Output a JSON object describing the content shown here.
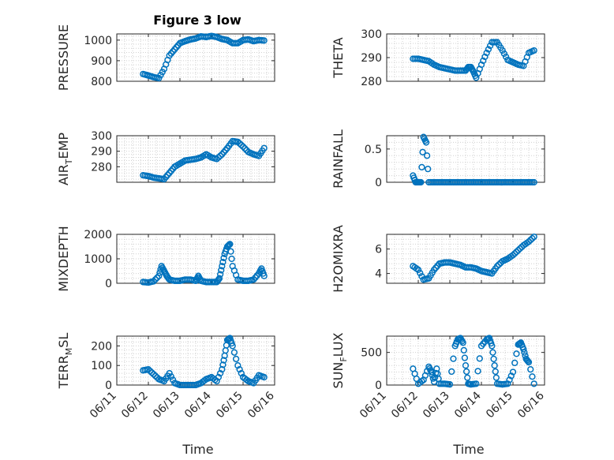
{
  "figure": {
    "title": "Figure 3 low",
    "xlabel": "Time"
  },
  "colors": {
    "marker": "#0072BD",
    "axis": "#262626",
    "grid": "#d0d0d0"
  },
  "x_ticks": [
    "06/11",
    "06/12",
    "06/13",
    "06/14",
    "06/15",
    "06/16"
  ],
  "chart_data": [
    {
      "type": "scatter",
      "ylabel_parts": [
        "PRESSURE"
      ],
      "ylim": [
        800,
        1030
      ],
      "yticks": [
        800,
        900,
        1000
      ],
      "grid": true,
      "x": [
        "06/11 20:00",
        "06/12 00:00",
        "06/12 04:00",
        "06/12 08:00",
        "06/12 12:00",
        "06/12 16:00",
        "06/12 20:00",
        "06/13 00:00",
        "06/13 04:00",
        "06/13 08:00",
        "06/13 12:00",
        "06/13 16:00",
        "06/13 20:00",
        "06/14 00:00",
        "06/14 04:00",
        "06/14 08:00",
        "06/14 12:00",
        "06/14 16:00",
        "06/14 20:00",
        "06/15 00:00",
        "06/15 04:00",
        "06/15 08:00",
        "06/15 12:00",
        "06/15 16:00"
      ],
      "y": [
        835,
        828,
        820,
        815,
        860,
        925,
        955,
        985,
        995,
        1003,
        1008,
        1018,
        1015,
        1020,
        1015,
        1005,
        1000,
        985,
        985,
        1000,
        1003,
        995,
        1000,
        998
      ]
    },
    {
      "type": "scatter",
      "ylabel_parts": [
        "THETA"
      ],
      "ylim": [
        280,
        300
      ],
      "yticks": [
        280,
        290,
        300
      ],
      "grid": true,
      "x": [
        "06/11 20:00",
        "06/12 00:00",
        "06/12 04:00",
        "06/12 08:00",
        "06/12 12:00",
        "06/12 16:00",
        "06/12 20:00",
        "06/13 00:00",
        "06/13 04:00",
        "06/13 08:00",
        "06/13 12:00",
        "06/13 14:00",
        "06/13 16:00",
        "06/13 18:00",
        "06/13 20:00",
        "06/14 00:00",
        "06/14 04:00",
        "06/14 08:00",
        "06/14 12:00",
        "06/14 16:00",
        "06/14 20:00",
        "06/15 00:00",
        "06/15 04:00",
        "06/15 08:00",
        "06/15 12:00",
        "06/15 16:00"
      ],
      "y": [
        289.5,
        289.5,
        289,
        288.5,
        287,
        286,
        285.5,
        285,
        284.5,
        284.5,
        284.5,
        286,
        286,
        284,
        281.5,
        287,
        292,
        296.5,
        296.5,
        293,
        289,
        288,
        287,
        286.5,
        292,
        293
      ]
    },
    {
      "type": "scatter",
      "ylabel_parts": [
        "AIR",
        "T",
        "EMP"
      ],
      "ylim": [
        270,
        300
      ],
      "yticks": [
        280,
        290,
        300
      ],
      "grid": true,
      "x": [
        "06/11 20:00",
        "06/12 00:00",
        "06/12 04:00",
        "06/12 08:00",
        "06/12 12:00",
        "06/12 16:00",
        "06/12 20:00",
        "06/13 00:00",
        "06/13 04:00",
        "06/13 08:00",
        "06/13 12:00",
        "06/13 16:00",
        "06/13 20:00",
        "06/14 00:00",
        "06/14 04:00",
        "06/14 08:00",
        "06/14 12:00",
        "06/14 16:00",
        "06/14 20:00",
        "06/15 00:00",
        "06/15 04:00",
        "06/15 08:00",
        "06/15 12:00",
        "06/15 16:00"
      ],
      "y": [
        274.5,
        274,
        273,
        272.5,
        272,
        276,
        280,
        282,
        284,
        284.5,
        285,
        286,
        288,
        286,
        285,
        288,
        292,
        296.5,
        296,
        293,
        289.5,
        288,
        287,
        292
      ]
    },
    {
      "type": "scatter",
      "ylabel_parts": [
        "RAINFALL"
      ],
      "ylim": [
        0,
        0.7
      ],
      "yticks": [
        0,
        0.5
      ],
      "grid": true,
      "x": [
        "06/11 20:00",
        "06/11 22:00",
        "06/12 00:00",
        "06/12 02:00",
        "06/12 04:00",
        "06/12 06:00",
        "06/12 08:00",
        "06/12 12:00",
        "06/12 16:00",
        "06/12 20:00",
        "06/13 00:00",
        "06/13 04:00",
        "06/13 08:00",
        "06/13 12:00",
        "06/13 16:00",
        "06/13 20:00",
        "06/14 00:00",
        "06/14 04:00",
        "06/14 08:00",
        "06/14 12:00",
        "06/14 16:00",
        "06/14 20:00",
        "06/15 00:00",
        "06/15 04:00",
        "06/15 08:00",
        "06/15 12:00",
        "06/15 16:00"
      ],
      "y": [
        0.1,
        0,
        0,
        0,
        0.68,
        0.6,
        0,
        0,
        0,
        0,
        0,
        0,
        0,
        0,
        0,
        0,
        0,
        0,
        0,
        0,
        0,
        0,
        0,
        0,
        0,
        0,
        0
      ]
    },
    {
      "type": "scatter",
      "ylabel_parts": [
        "MIXDEPTH"
      ],
      "ylim": [
        0,
        2000
      ],
      "yticks": [
        0,
        1000,
        2000
      ],
      "grid": true,
      "x": [
        "06/11 20:00",
        "06/12 00:00",
        "06/12 04:00",
        "06/12 08:00",
        "06/12 10:00",
        "06/12 12:00",
        "06/12 14:00",
        "06/12 16:00",
        "06/12 20:00",
        "06/13 00:00",
        "06/13 04:00",
        "06/13 08:00",
        "06/13 12:00",
        "06/13 14:00",
        "06/13 16:00",
        "06/13 20:00",
        "06/14 00:00",
        "06/14 04:00",
        "06/14 06:00",
        "06/14 08:00",
        "06/14 10:00",
        "06/14 12:00",
        "06/14 14:00",
        "06/14 16:00",
        "06/14 20:00",
        "06/15 00:00",
        "06/15 04:00",
        "06/15 08:00",
        "06/15 12:00",
        "06/15 14:00",
        "06/15 16:00"
      ],
      "y": [
        50,
        30,
        80,
        300,
        700,
        500,
        300,
        150,
        100,
        100,
        150,
        150,
        100,
        300,
        100,
        50,
        50,
        50,
        200,
        700,
        1200,
        1500,
        1600,
        700,
        150,
        100,
        100,
        150,
        400,
        600,
        300
      ]
    },
    {
      "type": "scatter",
      "ylabel_parts": [
        "H2OMIXRA"
      ],
      "ylim": [
        3.2,
        7.2
      ],
      "yticks": [
        4,
        6
      ],
      "grid": true,
      "x": [
        "06/11 20:00",
        "06/12 00:00",
        "06/12 04:00",
        "06/12 08:00",
        "06/12 12:00",
        "06/12 16:00",
        "06/12 20:00",
        "06/13 00:00",
        "06/13 04:00",
        "06/13 08:00",
        "06/13 12:00",
        "06/13 16:00",
        "06/13 20:00",
        "06/14 00:00",
        "06/14 04:00",
        "06/14 08:00",
        "06/14 12:00",
        "06/14 16:00",
        "06/14 20:00",
        "06/15 00:00",
        "06/15 04:00",
        "06/15 08:00",
        "06/15 12:00",
        "06/15 16:00"
      ],
      "y": [
        4.6,
        4.3,
        3.5,
        3.6,
        4.3,
        4.8,
        4.9,
        4.9,
        4.8,
        4.7,
        4.5,
        4.5,
        4.4,
        4.2,
        4.1,
        4.0,
        4.6,
        5.0,
        5.2,
        5.5,
        5.9,
        6.3,
        6.6,
        7.0
      ]
    },
    {
      "type": "scatter",
      "ylabel_parts": [
        "TERR",
        "M",
        "SL"
      ],
      "ylim": [
        0,
        250
      ],
      "yticks": [
        0,
        100,
        200
      ],
      "grid": true,
      "x": [
        "06/11 20:00",
        "06/12 00:00",
        "06/12 04:00",
        "06/12 08:00",
        "06/12 12:00",
        "06/12 16:00",
        "06/12 20:00",
        "06/13 00:00",
        "06/13 04:00",
        "06/13 08:00",
        "06/13 12:00",
        "06/13 16:00",
        "06/13 20:00",
        "06/14 00:00",
        "06/14 04:00",
        "06/14 08:00",
        "06/14 10:00",
        "06/14 12:00",
        "06/14 14:00",
        "06/14 16:00",
        "06/14 20:00",
        "06/15 00:00",
        "06/15 04:00",
        "06/15 08:00",
        "06/15 12:00",
        "06/15 16:00"
      ],
      "y": [
        75,
        80,
        55,
        30,
        20,
        60,
        10,
        0,
        0,
        0,
        0,
        10,
        30,
        40,
        20,
        80,
        150,
        230,
        240,
        200,
        100,
        40,
        20,
        10,
        50,
        40
      ]
    },
    {
      "type": "scatter",
      "ylabel_parts": [
        "SUN",
        "F",
        "LUX"
      ],
      "ylim": [
        0,
        750
      ],
      "yticks": [
        0,
        500
      ],
      "grid": true,
      "x": [
        "06/11 20:00",
        "06/12 00:00",
        "06/12 04:00",
        "06/12 08:00",
        "06/12 10:00",
        "06/12 12:00",
        "06/12 14:00",
        "06/12 16:00",
        "06/12 20:00",
        "06/13 00:00",
        "06/13 04:00",
        "06/13 06:00",
        "06/13 08:00",
        "06/13 10:00",
        "06/13 12:00",
        "06/13 14:00",
        "06/13 16:00",
        "06/13 20:00",
        "06/14 00:00",
        "06/14 04:00",
        "06/14 06:00",
        "06/14 08:00",
        "06/14 10:00",
        "06/14 12:00",
        "06/14 16:00",
        "06/14 20:00",
        "06/15 00:00",
        "06/15 04:00",
        "06/15 06:00",
        "06/15 08:00",
        "06/15 10:00",
        "06/15 12:00",
        "06/15 16:00"
      ],
      "y": [
        250,
        20,
        80,
        280,
        200,
        50,
        250,
        20,
        20,
        10,
        600,
        700,
        720,
        650,
        300,
        20,
        10,
        20,
        600,
        700,
        720,
        600,
        300,
        20,
        10,
        20,
        200,
        620,
        650,
        550,
        400,
        350,
        20
      ]
    }
  ]
}
